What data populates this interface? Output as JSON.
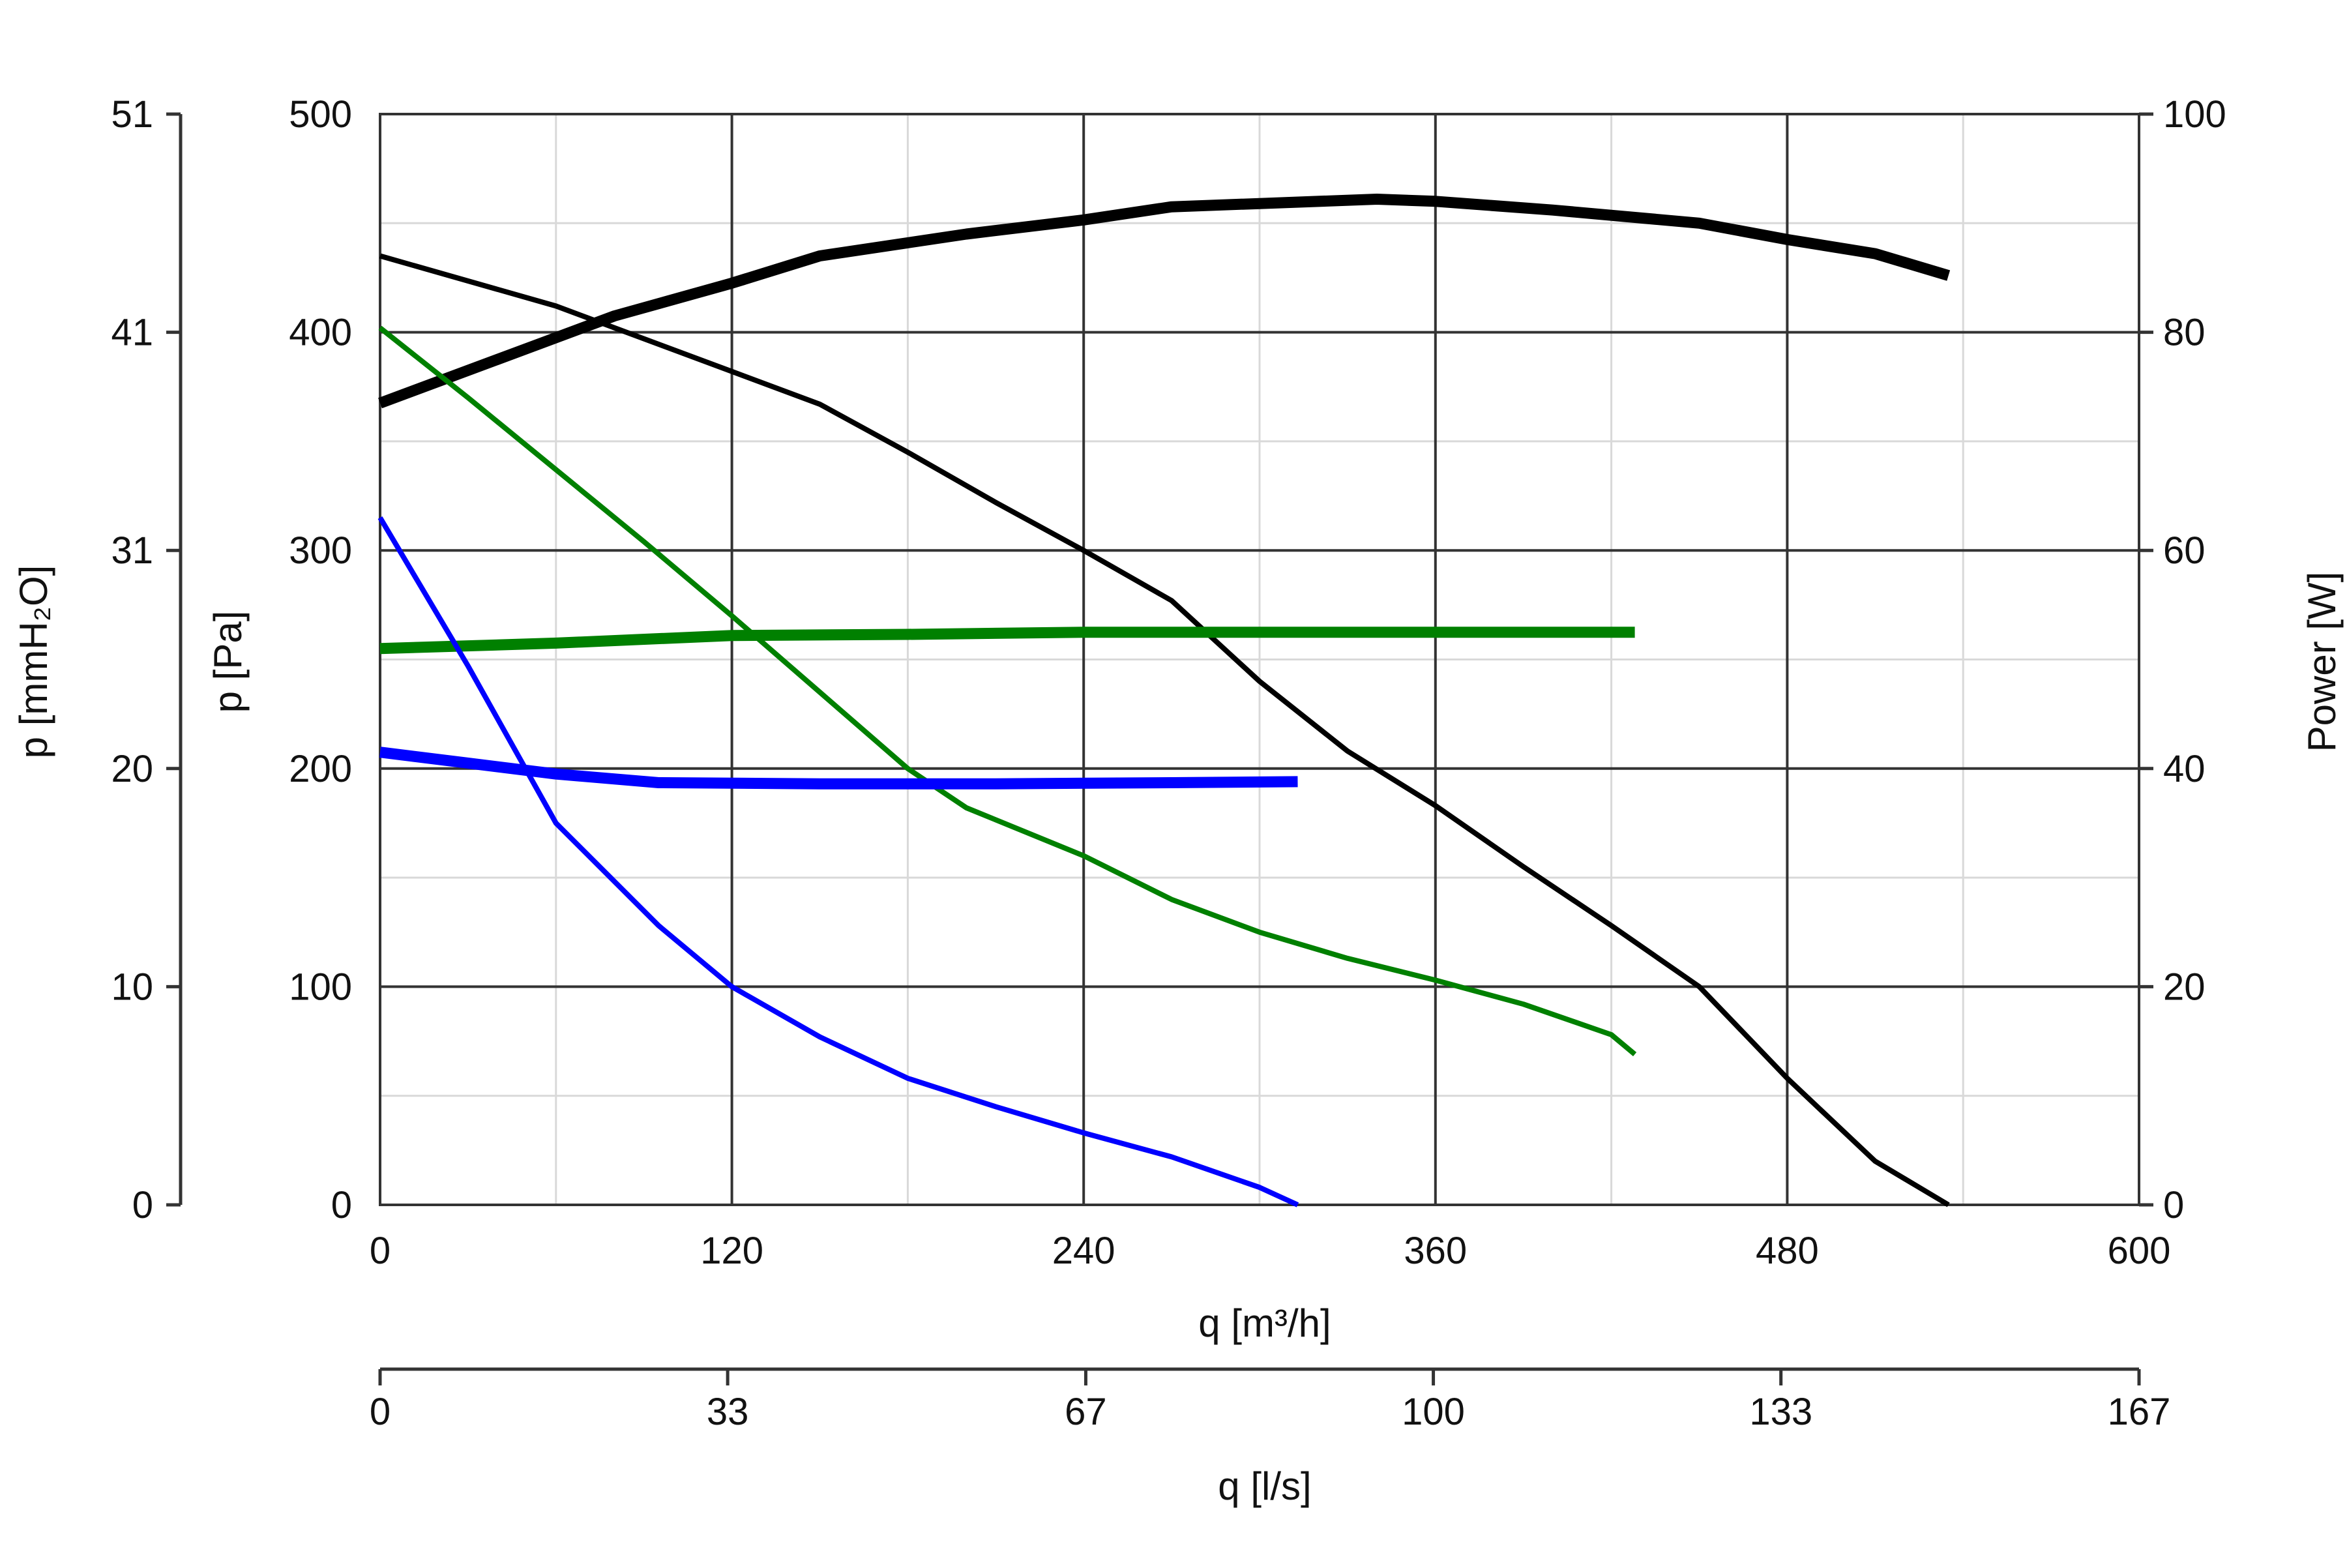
{
  "chart_data": {
    "type": "line",
    "x_axis": {
      "label": "q [m³/h]",
      "range": [
        0,
        600
      ],
      "ticks": [
        0,
        120,
        240,
        360,
        480,
        600
      ],
      "tick_labels": [
        "0",
        "120",
        "240",
        "360",
        "480",
        "600"
      ]
    },
    "x2_axis": {
      "label": "q [l/s]",
      "range": [
        0,
        167
      ],
      "ticks": [
        0,
        33,
        67,
        100,
        133,
        167
      ],
      "tick_labels": [
        "0",
        "33",
        "67",
        "100",
        "133",
        "167"
      ]
    },
    "y_axis": {
      "label": "p [Pa]",
      "range": [
        0,
        500
      ],
      "ticks": [
        0,
        100,
        200,
        300,
        400,
        500
      ],
      "tick_labels": [
        "0",
        "100",
        "200",
        "300",
        "400",
        "500"
      ]
    },
    "y_mm_axis": {
      "label": "p [mmH₂O]",
      "range": [
        0,
        51
      ],
      "tick_labels": [
        "0",
        "10",
        "20",
        "31",
        "41",
        "51"
      ]
    },
    "y_power_axis": {
      "label": "Power [W]",
      "range": [
        0,
        100
      ],
      "ticks": [
        0,
        20,
        40,
        60,
        80,
        100
      ],
      "tick_labels": [
        "0",
        "20",
        "40",
        "60",
        "80",
        "100"
      ]
    },
    "grid": {
      "major": true,
      "minor": true
    },
    "colors": {
      "black": "#000000",
      "green": "#008000",
      "blue": "#0000ff",
      "grid_major": "#333333",
      "grid_minor": "#d9d9d9"
    },
    "series": [
      {
        "color": "#000000",
        "kind": "pressure",
        "points": [
          [
            0,
            435
          ],
          [
            60,
            412
          ],
          [
            120,
            382
          ],
          [
            150,
            367
          ],
          [
            180,
            345
          ],
          [
            210,
            322
          ],
          [
            240,
            300
          ],
          [
            270,
            277
          ],
          [
            300,
            240
          ],
          [
            330,
            208
          ],
          [
            360,
            183
          ],
          [
            390,
            155
          ],
          [
            420,
            128
          ],
          [
            450,
            100
          ],
          [
            480,
            58
          ],
          [
            510,
            20
          ],
          [
            535,
            0
          ]
        ]
      },
      {
        "color": "#000000",
        "kind": "power",
        "points": [
          [
            0,
            73.5
          ],
          [
            40,
            77.5
          ],
          [
            80,
            81.5
          ],
          [
            120,
            84.5
          ],
          [
            150,
            87
          ],
          [
            200,
            89
          ],
          [
            240,
            90.3
          ],
          [
            270,
            91.5
          ],
          [
            300,
            91.8
          ],
          [
            340,
            92.2
          ],
          [
            360,
            92
          ],
          [
            400,
            91.2
          ],
          [
            450,
            90
          ],
          [
            480,
            88.5
          ],
          [
            510,
            87.2
          ],
          [
            535,
            85.2
          ]
        ]
      },
      {
        "color": "#008000",
        "kind": "pressure",
        "points": [
          [
            0,
            402
          ],
          [
            30,
            370
          ],
          [
            60,
            337
          ],
          [
            90,
            304
          ],
          [
            120,
            270
          ],
          [
            150,
            235
          ],
          [
            180,
            200
          ],
          [
            200,
            182
          ],
          [
            240,
            160
          ],
          [
            270,
            140
          ],
          [
            300,
            125
          ],
          [
            330,
            113
          ],
          [
            360,
            103
          ],
          [
            390,
            92
          ],
          [
            420,
            78
          ],
          [
            428,
            69
          ]
        ]
      },
      {
        "color": "#008000",
        "kind": "power",
        "points": [
          [
            0,
            51
          ],
          [
            60,
            51.5
          ],
          [
            120,
            52.2
          ],
          [
            180,
            52.3
          ],
          [
            240,
            52.5
          ],
          [
            300,
            52.5
          ],
          [
            360,
            52.5
          ],
          [
            428,
            52.5
          ]
        ]
      },
      {
        "color": "#0000ff",
        "kind": "pressure",
        "points": [
          [
            0,
            315
          ],
          [
            30,
            247
          ],
          [
            60,
            175
          ],
          [
            95,
            128
          ],
          [
            120,
            100
          ],
          [
            150,
            77
          ],
          [
            180,
            58
          ],
          [
            210,
            45
          ],
          [
            240,
            33
          ],
          [
            270,
            22
          ],
          [
            300,
            8
          ],
          [
            313,
            0
          ]
        ]
      },
      {
        "color": "#0000ff",
        "kind": "power",
        "points": [
          [
            0,
            41.5
          ],
          [
            30,
            40.5
          ],
          [
            60,
            39.5
          ],
          [
            95,
            38.7
          ],
          [
            150,
            38.6
          ],
          [
            210,
            38.6
          ],
          [
            270,
            38.7
          ],
          [
            313,
            38.8
          ]
        ]
      }
    ]
  }
}
